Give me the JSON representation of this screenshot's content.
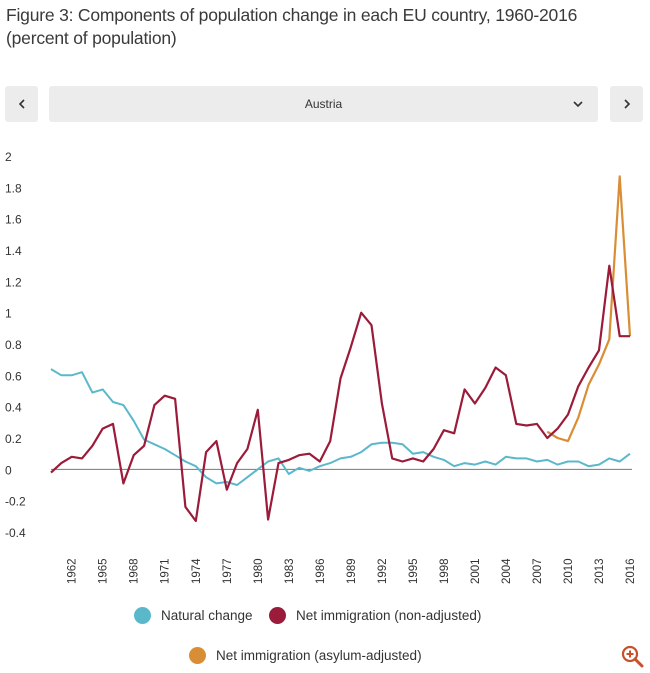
{
  "title": "Figure 3: Components of population change in each EU country, 1960-2016 (percent of population)",
  "selector": {
    "selected": "Austria",
    "prev_icon": "chevron-left-icon",
    "next_icon": "chevron-right-icon",
    "dropdown_icon": "chevron-down-icon"
  },
  "zoom_icon": "zoom-in-icon",
  "colors": {
    "natural": "#5bb8cb",
    "net": "#9b1b3a",
    "asylum": "#d98e35",
    "axis": "#777777"
  },
  "chart_data": {
    "type": "line",
    "title": "Components of population change in each EU country, 1960-2016 (percent of population)",
    "xlabel": "",
    "ylabel": "",
    "ylim": [
      -0.4,
      2
    ],
    "yticks": [
      "2",
      "1.8",
      "1.6",
      "1.4",
      "1.2",
      "1",
      "0.8",
      "0.6",
      "0.4",
      "0.2",
      "0",
      "-0.2",
      "-0.4"
    ],
    "ytick_values": [
      2,
      1.8,
      1.6,
      1.4,
      1.2,
      1,
      0.8,
      0.6,
      0.4,
      0.2,
      0,
      -0.2,
      -0.4
    ],
    "xticks": [
      1962,
      1965,
      1968,
      1971,
      1974,
      1977,
      1980,
      1983,
      1986,
      1989,
      1992,
      1995,
      1998,
      2001,
      2004,
      2007,
      2010,
      2013,
      2016
    ],
    "xlim": [
      1960,
      2016
    ],
    "series": [
      {
        "name": "Natural change",
        "color": "#5bb8cb",
        "x": [
          1960,
          1961,
          1962,
          1963,
          1964,
          1965,
          1966,
          1967,
          1968,
          1969,
          1970,
          1971,
          1972,
          1973,
          1974,
          1975,
          1976,
          1977,
          1978,
          1979,
          1980,
          1981,
          1982,
          1983,
          1984,
          1985,
          1986,
          1987,
          1988,
          1989,
          1990,
          1991,
          1992,
          1993,
          1994,
          1995,
          1996,
          1997,
          1998,
          1999,
          2000,
          2001,
          2002,
          2003,
          2004,
          2005,
          2006,
          2007,
          2008,
          2009,
          2010,
          2011,
          2012,
          2013,
          2014,
          2015,
          2016
        ],
        "values": [
          0.64,
          0.6,
          0.6,
          0.62,
          0.49,
          0.51,
          0.43,
          0.41,
          0.31,
          0.19,
          0.16,
          0.13,
          0.09,
          0.05,
          0.02,
          -0.05,
          -0.09,
          -0.08,
          -0.1,
          -0.05,
          0.0,
          0.05,
          0.07,
          -0.03,
          0.01,
          -0.01,
          0.02,
          0.04,
          0.07,
          0.08,
          0.11,
          0.16,
          0.17,
          0.17,
          0.16,
          0.1,
          0.11,
          0.08,
          0.06,
          0.02,
          0.04,
          0.03,
          0.05,
          0.03,
          0.08,
          0.07,
          0.07,
          0.05,
          0.06,
          0.03,
          0.05,
          0.05,
          0.02,
          0.03,
          0.07,
          0.05,
          0.1
        ]
      },
      {
        "name": "Net immigration (non-adjusted)",
        "color": "#9b1b3a",
        "x": [
          1960,
          1961,
          1962,
          1963,
          1964,
          1965,
          1966,
          1967,
          1968,
          1969,
          1970,
          1971,
          1972,
          1973,
          1974,
          1975,
          1976,
          1977,
          1978,
          1979,
          1980,
          1981,
          1982,
          1983,
          1984,
          1985,
          1986,
          1987,
          1988,
          1989,
          1990,
          1991,
          1992,
          1993,
          1994,
          1995,
          1996,
          1997,
          1998,
          1999,
          2000,
          2001,
          2002,
          2003,
          2004,
          2005,
          2006,
          2007,
          2008,
          2009,
          2010,
          2011,
          2012,
          2013,
          2014,
          2015,
          2016
        ],
        "values": [
          -0.02,
          0.04,
          0.08,
          0.07,
          0.15,
          0.26,
          0.29,
          -0.09,
          0.09,
          0.15,
          0.41,
          0.47,
          0.45,
          -0.24,
          -0.33,
          0.11,
          0.18,
          -0.13,
          0.04,
          0.13,
          0.38,
          -0.32,
          0.04,
          0.06,
          0.09,
          0.1,
          0.05,
          0.18,
          0.58,
          0.78,
          1.0,
          0.92,
          0.42,
          0.07,
          0.05,
          0.07,
          0.05,
          0.13,
          0.25,
          0.23,
          0.51,
          0.42,
          0.52,
          0.65,
          0.6,
          0.29,
          0.28,
          0.29,
          0.2,
          0.26,
          0.35,
          0.53,
          0.65,
          0.76,
          1.3,
          0.85,
          0.85
        ]
      },
      {
        "name": "Net immigration (asylum-adjusted)",
        "color": "#d98e35",
        "x": [
          2008,
          2009,
          2010,
          2011,
          2012,
          2013,
          2014,
          2015,
          2016
        ],
        "values": [
          0.24,
          0.2,
          0.18,
          0.33,
          0.54,
          0.67,
          0.83,
          1.87,
          0.85
        ]
      }
    ],
    "legend": [
      "Natural change",
      "Net immigration (non-adjusted)",
      "Net immigration (asylum-adjusted)"
    ],
    "legend_position": "bottom"
  }
}
